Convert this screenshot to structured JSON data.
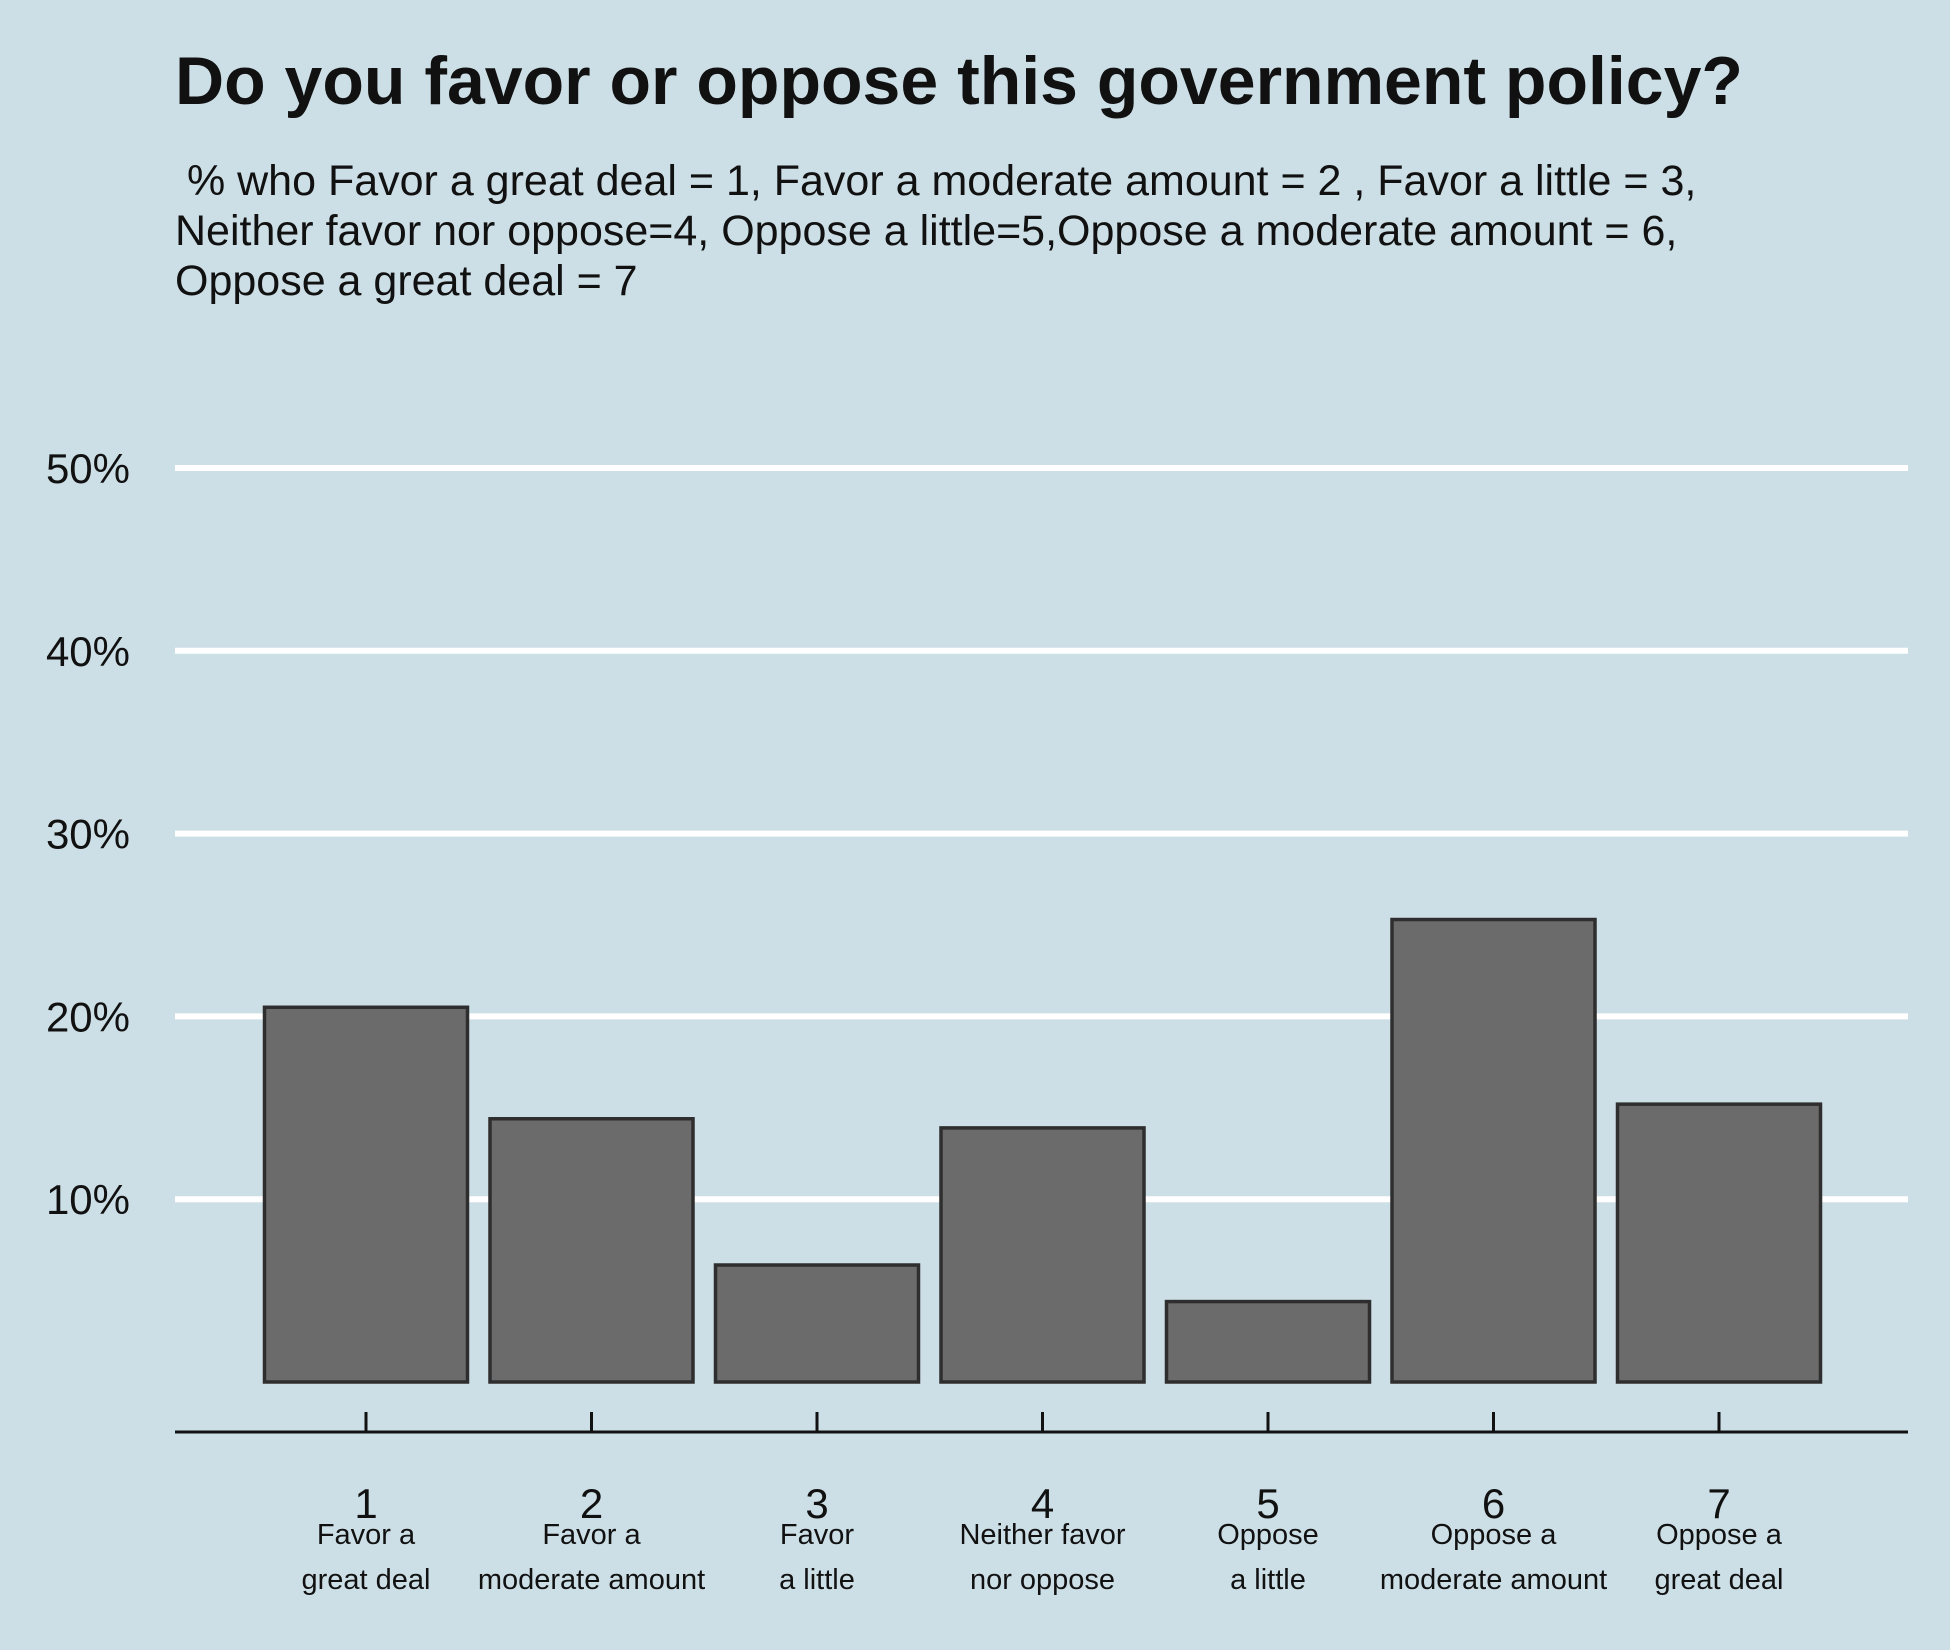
{
  "chart_data": {
    "type": "bar",
    "title": "Do you favor or oppose this government policy?",
    "subtitle": " % who Favor a great deal = 1, Favor a moderate amount = 2 , Favor a little = 3,\nNeither favor nor oppose=4, Oppose a little=5,Oppose a moderate amount = 6,\nOppose a great deal = 7",
    "xlabel": "",
    "ylabel": "",
    "categories": [
      "1",
      "2",
      "3",
      "4",
      "5",
      "6",
      "7"
    ],
    "category_descriptions": [
      [
        "Favor a",
        "great deal"
      ],
      [
        "Favor a",
        "moderate amount"
      ],
      [
        "Favor",
        "a little"
      ],
      [
        "Neither favor",
        "nor oppose"
      ],
      [
        "Oppose",
        "a little"
      ],
      [
        "Oppose a",
        "moderate amount"
      ],
      [
        "Oppose a",
        "great deal"
      ]
    ],
    "values": [
      20.5,
      14.4,
      6.4,
      13.9,
      4.4,
      25.3,
      15.2
    ],
    "ylim": [
      0,
      50
    ],
    "yticks": [
      10,
      20,
      30,
      40,
      50
    ],
    "ytick_labels": [
      "10%",
      "20%",
      "30%",
      "40%",
      "50%"
    ],
    "grid": "horizontal",
    "colors": {
      "background": "#cddfe6",
      "bar_fill": "#6b6b6b",
      "bar_stroke": "#2e2e2e",
      "grid": "#ffffff",
      "axis": "#111111"
    }
  }
}
